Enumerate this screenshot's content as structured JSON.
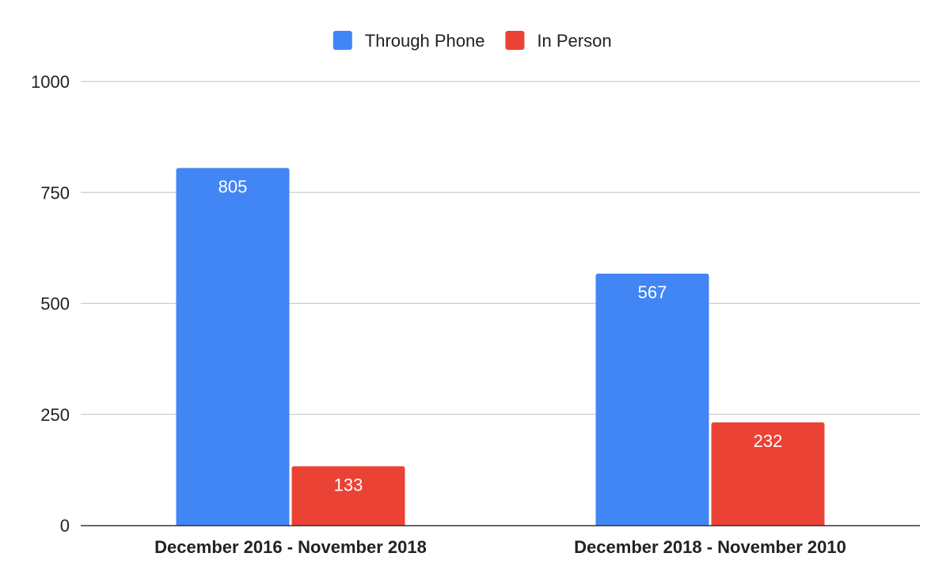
{
  "chart_data": {
    "type": "bar",
    "categories": [
      "December 2016 - November 2018",
      "December 2018 - November 2010"
    ],
    "series": [
      {
        "name": "Through Phone",
        "values": [
          805,
          567
        ],
        "color": "#4285f4"
      },
      {
        "name": "In Person",
        "values": [
          133,
          232
        ],
        "color": "#ea4335"
      }
    ],
    "ylim": [
      0,
      1000
    ],
    "yticks": [
      0,
      250,
      500,
      750,
      1000
    ],
    "legend_position": "top-center",
    "grid": true,
    "data_labels": true,
    "title": "",
    "xlabel": "",
    "ylabel": ""
  },
  "colors": {
    "grid": "#cccccc",
    "baseline": "#333333",
    "bar_label": "#ffffff"
  }
}
